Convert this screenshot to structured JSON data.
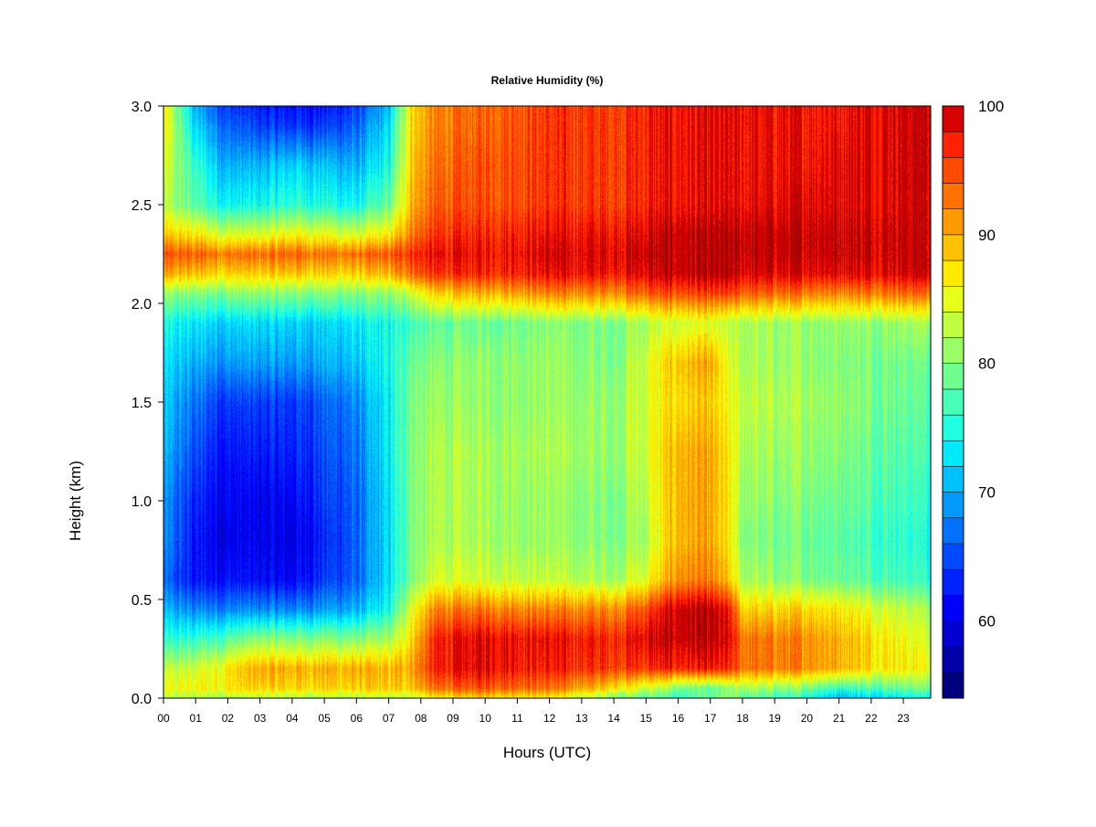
{
  "chart_data": {
    "type": "heatmap",
    "title": "Relative Humidity (%)",
    "xlabel": "Hours (UTC)",
    "ylabel": "Height (km)",
    "x_tick_labels": [
      "00",
      "01",
      "02",
      "03",
      "04",
      "05",
      "06",
      "07",
      "08",
      "09",
      "10",
      "11",
      "12",
      "13",
      "14",
      "15",
      "16",
      "17",
      "18",
      "19",
      "20",
      "21",
      "22",
      "23"
    ],
    "x_ticks": [
      0,
      1,
      2,
      3,
      4,
      5,
      6,
      7,
      8,
      9,
      10,
      11,
      12,
      13,
      14,
      15,
      16,
      17,
      18,
      19,
      20,
      21,
      22,
      23
    ],
    "xlim": [
      0,
      23.85
    ],
    "y_tick_labels": [
      "0.0",
      "0.5",
      "1.0",
      "1.5",
      "2.0",
      "2.5",
      "3.0"
    ],
    "y_ticks": [
      0,
      0.5,
      1.0,
      1.5,
      2.0,
      2.5,
      3.0
    ],
    "ylim": [
      0,
      3.0
    ],
    "colorbar": {
      "tick_labels": [
        "60",
        "70",
        "80",
        "90",
        "100"
      ],
      "ticks": [
        60,
        70,
        80,
        90,
        100
      ],
      "range": [
        54,
        100
      ],
      "step": 2,
      "colors": [
        "#00007F",
        "#0000A8",
        "#0000D2",
        "#0000FA",
        "#0022FF",
        "#004AFF",
        "#0072FF",
        "#009AFF",
        "#00C2FF",
        "#00EAFF",
        "#20FFDF",
        "#48FFB7",
        "#70FF8F",
        "#98FF67",
        "#C0FF3F",
        "#E8FF17",
        "#FFEA00",
        "#FFC200",
        "#FF9A00",
        "#FF7200",
        "#FF4A00",
        "#FF2200",
        "#D80000",
        "#AF0000",
        "#870000"
      ]
    },
    "z_range": [
      54,
      100
    ],
    "field_description_grid": {
      "hours": [
        0,
        1,
        2,
        3,
        4,
        5,
        6,
        7,
        7.7,
        8.5,
        10,
        12,
        14,
        15,
        16,
        17,
        17.6,
        18,
        20,
        21,
        22,
        23.85
      ],
      "heights_km": [
        0,
        0.05,
        0.15,
        0.3,
        0.45,
        0.6,
        0.8,
        1.0,
        1.25,
        1.5,
        1.7,
        1.9,
        2.05,
        2.15,
        2.25,
        2.35,
        2.5,
        2.7,
        2.9,
        3.0
      ],
      "values": [
        [
          82,
          82,
          82,
          82,
          82,
          82,
          82,
          82,
          83,
          86,
          88,
          86,
          80,
          78,
          76,
          78,
          80,
          78,
          75,
          70,
          72,
          74
        ],
        [
          85,
          86,
          87,
          88,
          88,
          88,
          88,
          88,
          89,
          93,
          95,
          93,
          88,
          84,
          80,
          78,
          80,
          82,
          80,
          76,
          78,
          80
        ],
        [
          82,
          84,
          87,
          90,
          90,
          90,
          90,
          89,
          91,
          97,
          99,
          97,
          96,
          96,
          97,
          97,
          96,
          93,
          92,
          90,
          88,
          86
        ],
        [
          75,
          76,
          78,
          80,
          80,
          80,
          80,
          81,
          88,
          97,
          99,
          98,
          97,
          99,
          100,
          100,
          98,
          93,
          92,
          90,
          88,
          84
        ],
        [
          70,
          68,
          68,
          68,
          68,
          69,
          70,
          74,
          85,
          92,
          93,
          92,
          92,
          95,
          100,
          100,
          97,
          88,
          88,
          87,
          85,
          82
        ],
        [
          66,
          62,
          62,
          61,
          61,
          64,
          66,
          72,
          80,
          84,
          84,
          83,
          82,
          85,
          92,
          92,
          88,
          82,
          80,
          79,
          78,
          76
        ],
        [
          68,
          62,
          60,
          60,
          60,
          63,
          66,
          72,
          80,
          82,
          82,
          81,
          80,
          82,
          90,
          90,
          86,
          80,
          79,
          78,
          77,
          75
        ],
        [
          68,
          63,
          61,
          60,
          61,
          64,
          66,
          72,
          80,
          82,
          82,
          81,
          80,
          83,
          90,
          90,
          86,
          81,
          80,
          79,
          78,
          76
        ],
        [
          70,
          65,
          62,
          62,
          63,
          65,
          67,
          73,
          80,
          82,
          82,
          82,
          81,
          84,
          90,
          90,
          86,
          82,
          81,
          80,
          79,
          77
        ],
        [
          71,
          67,
          64,
          64,
          64,
          66,
          68,
          73,
          80,
          81,
          81,
          81,
          81,
          84,
          88,
          88,
          85,
          83,
          82,
          81,
          80,
          78
        ],
        [
          72,
          70,
          69,
          69,
          69,
          70,
          71,
          74,
          79,
          80,
          81,
          81,
          80,
          84,
          89,
          90,
          84,
          82,
          81,
          80,
          80,
          79
        ],
        [
          74,
          73,
          72,
          72,
          72,
          72,
          73,
          74,
          77,
          78,
          79,
          80,
          80,
          82,
          84,
          84,
          82,
          82,
          81,
          81,
          81,
          82
        ],
        [
          80,
          80,
          80,
          80,
          80,
          80,
          80,
          80,
          84,
          88,
          90,
          92,
          92,
          94,
          95,
          95,
          95,
          94,
          93,
          92,
          93,
          94
        ],
        [
          90,
          89,
          88,
          88,
          89,
          88,
          88,
          89,
          94,
          96,
          97,
          98,
          98,
          99,
          100,
          100,
          100,
          99,
          99,
          99,
          99,
          100
        ],
        [
          94,
          94,
          93,
          93,
          94,
          93,
          93,
          94,
          97,
          98,
          98,
          99,
          99,
          100,
          100,
          100,
          100,
          100,
          100,
          100,
          100,
          100
        ],
        [
          88,
          87,
          84,
          84,
          86,
          85,
          84,
          86,
          93,
          96,
          97,
          98,
          98,
          99,
          100,
          100,
          100,
          100,
          100,
          100,
          100,
          100
        ],
        [
          82,
          78,
          74,
          74,
          76,
          75,
          74,
          78,
          90,
          94,
          95,
          96,
          96,
          97,
          98,
          98,
          98,
          98,
          99,
          99,
          99,
          100
        ],
        [
          84,
          76,
          70,
          70,
          72,
          71,
          70,
          74,
          89,
          93,
          95,
          96,
          96,
          97,
          98,
          98,
          98,
          98,
          98,
          99,
          99,
          100
        ],
        [
          86,
          72,
          66,
          64,
          64,
          64,
          66,
          72,
          88,
          92,
          94,
          96,
          96,
          97,
          98,
          98,
          98,
          98,
          98,
          98,
          99,
          100
        ],
        [
          86,
          70,
          64,
          62,
          62,
          62,
          64,
          70,
          88,
          92,
          94,
          96,
          96,
          97,
          98,
          98,
          98,
          98,
          98,
          98,
          99,
          100
        ]
      ]
    }
  }
}
